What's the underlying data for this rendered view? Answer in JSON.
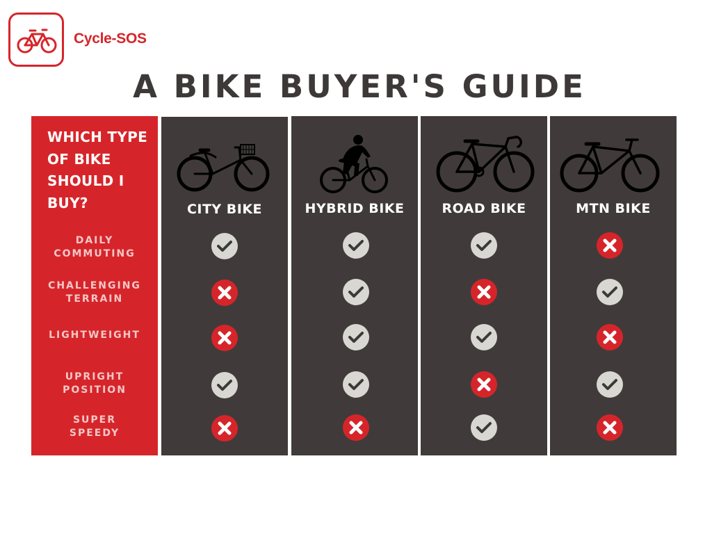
{
  "brand": {
    "name": "Cycle-SOS",
    "icon": "bicycle-icon",
    "color": "#d6252a"
  },
  "title": "A BIKE BUYER'S GUIDE",
  "question_lines": [
    "WHICH TYPE",
    "OF BIKE",
    "SHOULD I",
    "BUY?"
  ],
  "features": [
    [
      "DAILY",
      "COMMUTING"
    ],
    [
      "CHALLENGING",
      "TERRAIN"
    ],
    [
      "LIGHTWEIGHT"
    ],
    [
      "UPRIGHT",
      "POSITION"
    ],
    [
      "SUPER",
      "SPEEDY"
    ]
  ],
  "bikes": [
    {
      "name": "CITY BIKE",
      "icon": "city-bike-icon",
      "marks": [
        "yes",
        "no",
        "no",
        "yes",
        "no"
      ]
    },
    {
      "name": "HYBRID BIKE",
      "icon": "hybrid-bike-rider-icon",
      "marks": [
        "yes",
        "yes",
        "yes",
        "yes",
        "no"
      ]
    },
    {
      "name": "ROAD BIKE",
      "icon": "road-bike-icon",
      "marks": [
        "yes",
        "no",
        "yes",
        "no",
        "yes"
      ]
    },
    {
      "name": "MTN BIKE",
      "icon": "mountain-bike-icon",
      "marks": [
        "no",
        "yes",
        "no",
        "yes",
        "no"
      ]
    }
  ],
  "colors": {
    "red": "#d6252a",
    "dark": "#403b3a",
    "check_bg": "#d9d7d2",
    "check_mark": "#3d3938"
  }
}
